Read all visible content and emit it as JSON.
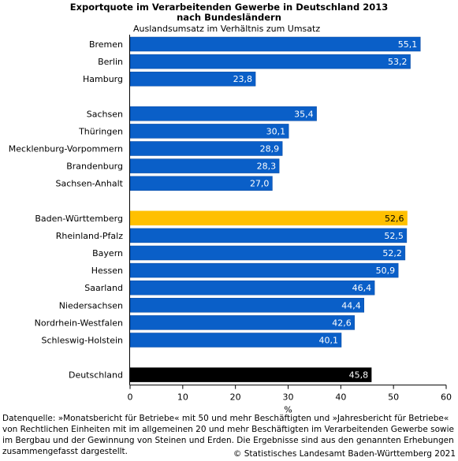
{
  "chart_data": {
    "type": "bar",
    "orientation": "horizontal",
    "title_line1": "Exportquote im Verarbeitenden Gewerbe in Deutschland 2013",
    "title_line2": "nach Bundesländern",
    "subtitle": "Auslandsumsatz im Verhältnis zum Umsatz",
    "xlabel": "%",
    "xlim": [
      0,
      60
    ],
    "xticks": [
      "0",
      "10",
      "20",
      "30",
      "40",
      "50",
      "60"
    ],
    "grid": false,
    "groups": [
      {
        "categories": [
          "Bremen",
          "Berlin",
          "Hamburg"
        ],
        "values": [
          55.1,
          53.2,
          23.8
        ],
        "labels": [
          "55,1",
          "53,2",
          "23,8"
        ]
      },
      {
        "categories": [
          "Sachsen",
          "Thüringen",
          "Mecklenburg-Vorpommern",
          "Brandenburg",
          "Sachsen-Anhalt"
        ],
        "values": [
          35.4,
          30.1,
          28.9,
          28.3,
          27.0
        ],
        "labels": [
          "35,4",
          "30,1",
          "28,9",
          "28,3",
          "27,0"
        ]
      },
      {
        "categories": [
          "Baden-Württemberg",
          "Rheinland-Pfalz",
          "Bayern",
          "Hessen",
          "Saarland",
          "Niedersachsen",
          "Nordrhein-Westfalen",
          "Schleswig-Holstein"
        ],
        "values": [
          52.6,
          52.5,
          52.2,
          50.9,
          46.4,
          44.4,
          42.6,
          40.1
        ],
        "labels": [
          "52,6",
          "52,5",
          "52,2",
          "50,9",
          "46,4",
          "44,4",
          "42,6",
          "40,1"
        ]
      },
      {
        "categories": [
          "Deutschland"
        ],
        "values": [
          45.8
        ],
        "labels": [
          "45,8"
        ]
      }
    ],
    "highlight": {
      "Baden-Württemberg": "#ffc000",
      "Deutschland": "#000000"
    },
    "colors": {
      "bar": "#0a5fc8",
      "bar_border": "#0b4aa0"
    }
  },
  "footnote": "Datenquelle: »Monatsbericht für Betriebe« mit 50 und mehr Beschäftigten und »Jahresbericht für Betriebe« von Rechtlichen Einheiten mit im allgemeinen 20 und mehr Beschäftigten im Verarbeitenden Gewerbe sowie im Bergbau und der Gewinnung von Steinen und Erden. Die Ergebnisse sind aus den genannten Erhebungen zusammengefasst dargestellt.",
  "copyright": "© Statistisches Landesamt Baden-Württemberg 2021"
}
